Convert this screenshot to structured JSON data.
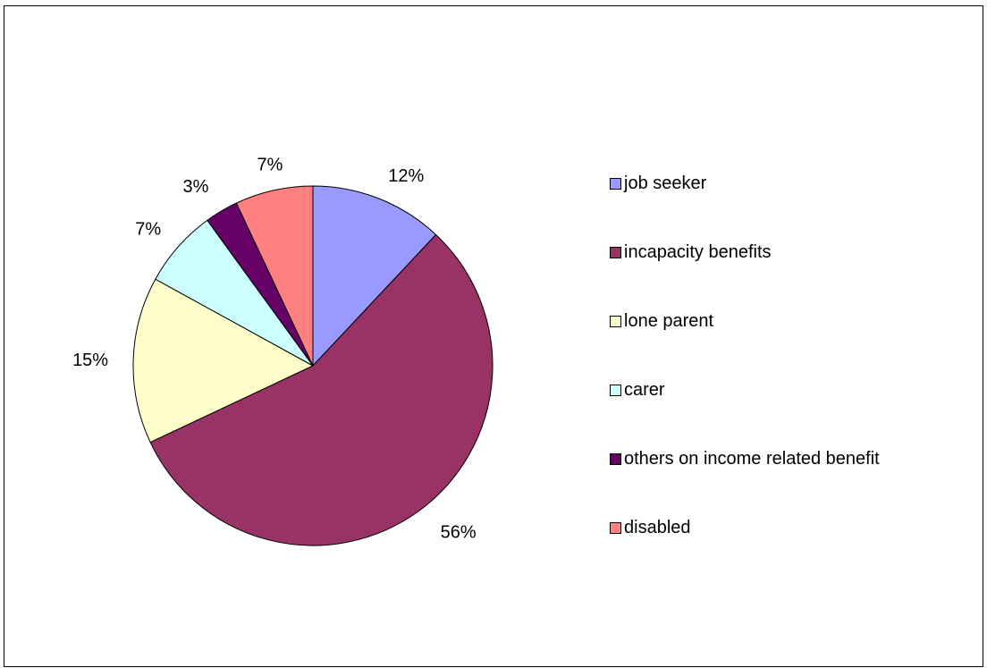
{
  "chart_data": {
    "type": "pie",
    "title": "",
    "slices": [
      {
        "name": "job seeker",
        "value": 12,
        "label": "12%",
        "color": "#9999FF"
      },
      {
        "name": "incapacity benefits",
        "value": 56,
        "label": "56%",
        "color": "#993366"
      },
      {
        "name": "lone parent",
        "value": 15,
        "label": "15%",
        "color": "#FFFFCC"
      },
      {
        "name": "carer",
        "value": 7,
        "label": "7%",
        "color": "#CCFFFF"
      },
      {
        "name": "others on income related benefit",
        "value": 3,
        "label": "3%",
        "color": "#660066"
      },
      {
        "name": "disabled",
        "value": 7,
        "label": "7%",
        "color": "#FF8080"
      }
    ],
    "start": "12 o'clock",
    "direction": "clockwise",
    "legend_position": "right"
  }
}
